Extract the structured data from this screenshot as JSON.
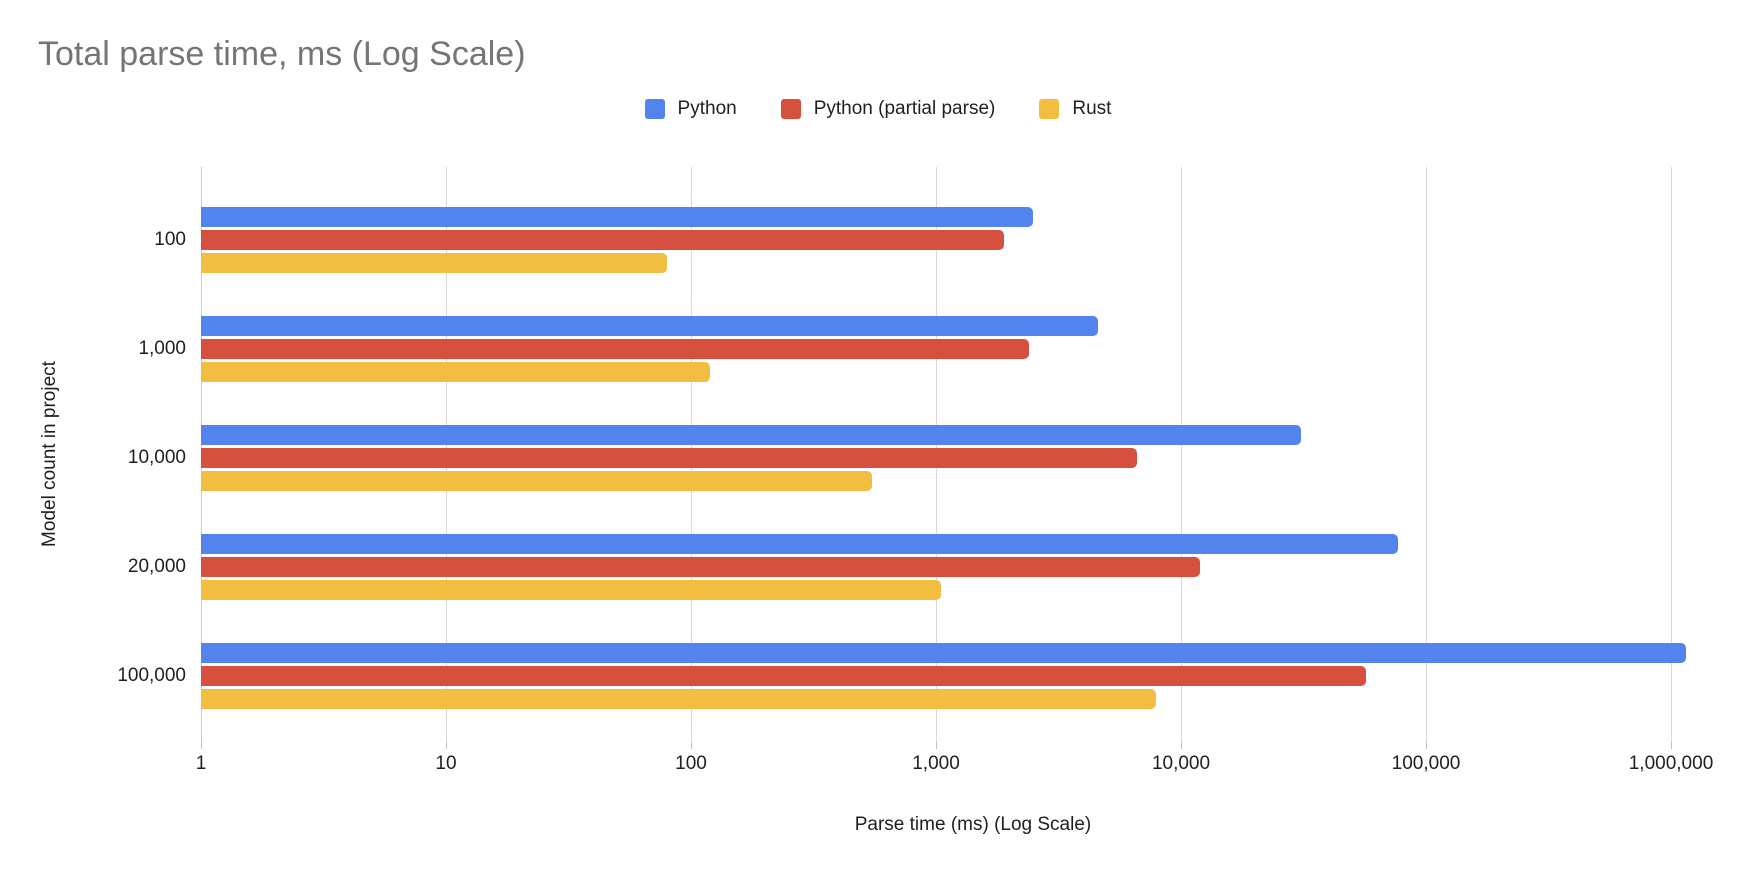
{
  "chart_data": {
    "type": "bar",
    "orientation": "horizontal",
    "x_scale": "log10",
    "title": "Total parse time, ms (Log Scale)",
    "xlabel": "Parse time (ms) (Log Scale)",
    "ylabel": "Model count in project",
    "categories": [
      "100",
      "1,000",
      "10,000",
      "20,000",
      "100,000"
    ],
    "series": [
      {
        "name": "Python",
        "color": "#5383EC",
        "values": [
          2500,
          4600,
          31000,
          77000,
          1150000
        ]
      },
      {
        "name": "Python (partial parse)",
        "color": "#D6503F",
        "values": [
          1900,
          2400,
          6600,
          12000,
          57000
        ]
      },
      {
        "name": "Rust",
        "color": "#F1BE42",
        "values": [
          80,
          120,
          550,
          1050,
          7900
        ]
      }
    ],
    "x_ticks": [
      "1",
      "10",
      "100",
      "1,000",
      "10,000",
      "100,000",
      "1,000,000"
    ],
    "xlim": [
      1,
      2000000
    ],
    "grid": true,
    "legend_position": "top"
  }
}
